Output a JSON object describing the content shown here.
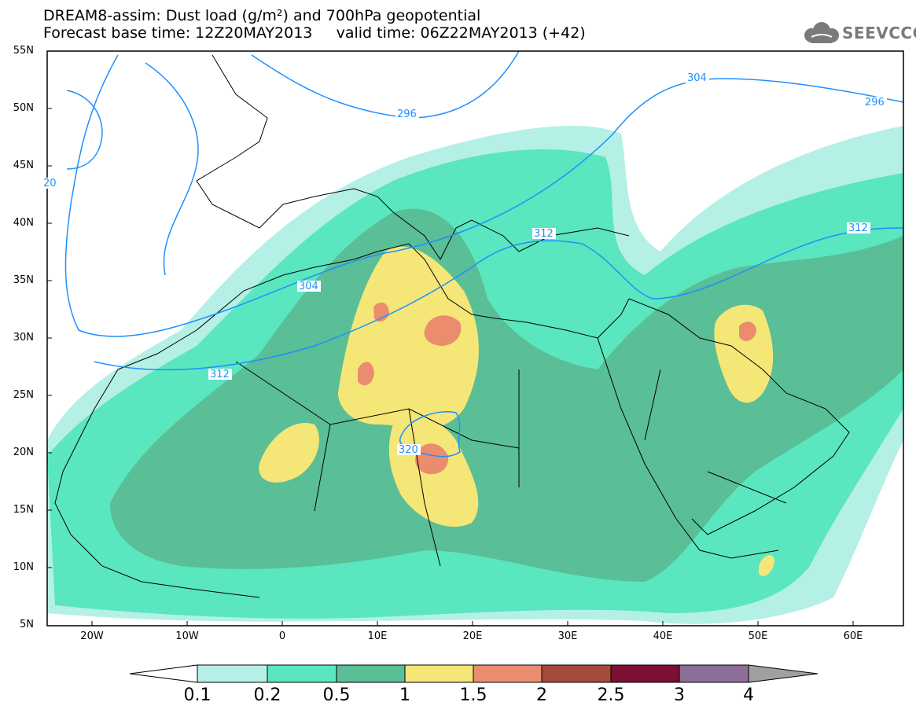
{
  "title": {
    "line1": "DREAM8-assim: Dust load (g/m²) and 700hPa geopotential",
    "line2": "Forecast base time: 12Z20MAY2013     valid time: 06Z22MAY2013 (+42)"
  },
  "logo": {
    "text": "SEEVCCC",
    "icon": "cloud-icon"
  },
  "map": {
    "lat_labels": [
      "55N",
      "50N",
      "45N",
      "40N",
      "35N",
      "30N",
      "25N",
      "20N",
      "15N",
      "10N",
      "5N"
    ],
    "lon_labels": [
      "20W",
      "10W",
      "0",
      "10E",
      "20E",
      "30E",
      "40E",
      "50E",
      "60E"
    ],
    "geopotential_labels": [
      "296",
      "296",
      "304",
      "304",
      "312",
      "312",
      "312",
      "320",
      "20"
    ],
    "colors": {
      "ocean": "#ffffff",
      "coast": "#000000",
      "contour": "#1e90ff"
    }
  },
  "colorbar": {
    "levels": [
      "0.1",
      "0.2",
      "0.5",
      "1",
      "1.5",
      "2",
      "2.5",
      "3",
      "4"
    ],
    "colors": [
      "#b4f0e6",
      "#5ae6be",
      "#5abe96",
      "#f5e678",
      "#eb8c6e",
      "#a54b3c",
      "#7d0f32",
      "#8c6e9b"
    ],
    "under_color": "#ffffff",
    "over_color": "#a0a0a0"
  }
}
